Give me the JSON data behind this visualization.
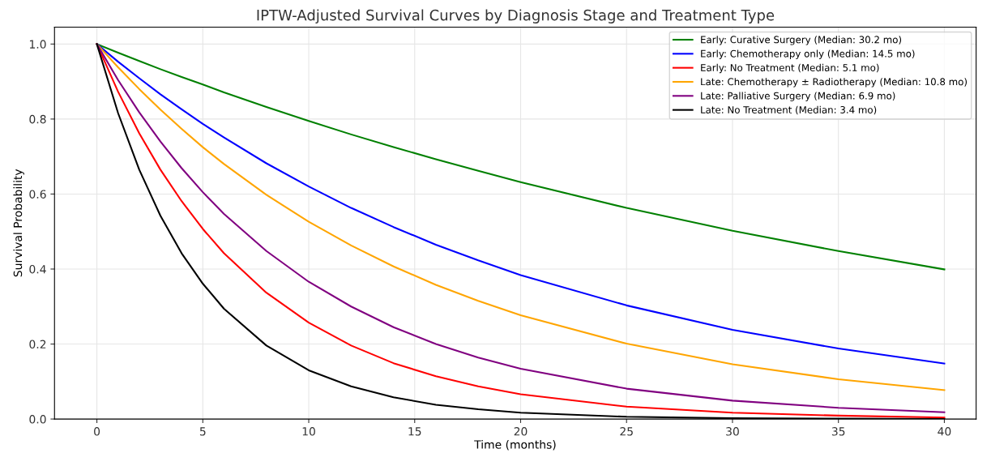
{
  "chart_data": {
    "type": "line",
    "title": "IPTW-Adjusted Survival Curves by Diagnosis Stage and Treatment Type",
    "xlabel": "Time (months)",
    "ylabel": "Survival Probability",
    "x": [
      0,
      1,
      2,
      3,
      4,
      5,
      6,
      8,
      10,
      12,
      14,
      16,
      18,
      20,
      25,
      30,
      35,
      40
    ],
    "series": [
      {
        "name": "Early: Curative Surgery (Median: 30.2 mo)",
        "color": "#008000",
        "values": [
          1.0,
          0.977,
          0.955,
          0.933,
          0.912,
          0.892,
          0.871,
          0.832,
          0.795,
          0.759,
          0.725,
          0.693,
          0.662,
          0.632,
          0.563,
          0.502,
          0.448,
          0.399
        ]
      },
      {
        "name": "Early: Chemotherapy only (Median: 14.5 mo)",
        "color": "#0000ff",
        "values": [
          1.0,
          0.953,
          0.909,
          0.866,
          0.826,
          0.787,
          0.751,
          0.682,
          0.62,
          0.563,
          0.512,
          0.465,
          0.423,
          0.384,
          0.303,
          0.238,
          0.188,
          0.148
        ]
      },
      {
        "name": "Early: No Treatment (Median: 5.1 mo)",
        "color": "#ff0000",
        "values": [
          1.0,
          0.873,
          0.762,
          0.665,
          0.581,
          0.507,
          0.442,
          0.337,
          0.257,
          0.196,
          0.149,
          0.114,
          0.087,
          0.066,
          0.033,
          0.017,
          0.009,
          0.004
        ]
      },
      {
        "name": "Late: Chemotherapy ± Radiotherapy (Median: 10.8 mo)",
        "color": "#ffa500",
        "values": [
          1.0,
          0.938,
          0.88,
          0.825,
          0.774,
          0.725,
          0.68,
          0.598,
          0.526,
          0.463,
          0.407,
          0.358,
          0.315,
          0.277,
          0.201,
          0.146,
          0.106,
          0.077
        ]
      },
      {
        "name": "Late: Palliative Surgery (Median: 6.9 mo)",
        "color": "#800080",
        "values": [
          1.0,
          0.904,
          0.818,
          0.74,
          0.669,
          0.605,
          0.547,
          0.448,
          0.366,
          0.3,
          0.245,
          0.2,
          0.164,
          0.134,
          0.081,
          0.049,
          0.03,
          0.018
        ]
      },
      {
        "name": "Late: No Treatment (Median: 3.4 mo)",
        "color": "#000000",
        "values": [
          1.0,
          0.816,
          0.665,
          0.542,
          0.442,
          0.361,
          0.294,
          0.196,
          0.13,
          0.087,
          0.058,
          0.038,
          0.026,
          0.017,
          0.006,
          0.002,
          0.001,
          0.0
        ]
      }
    ],
    "xlim": [
      -2,
      41.5
    ],
    "xticks": [
      0,
      5,
      10,
      15,
      20,
      25,
      30,
      35,
      40
    ],
    "ylim": [
      0,
      1.045
    ],
    "yticks": [
      {
        "value": 0,
        "label": "0.0"
      },
      {
        "value": 0.2,
        "label": "0.2"
      },
      {
        "value": 0.4,
        "label": "0.4"
      },
      {
        "value": 0.6,
        "label": "0.6"
      },
      {
        "value": 0.8,
        "label": "0.8"
      },
      {
        "value": 1.0,
        "label": "1.0"
      }
    ],
    "grid": true,
    "legend": "top right"
  }
}
